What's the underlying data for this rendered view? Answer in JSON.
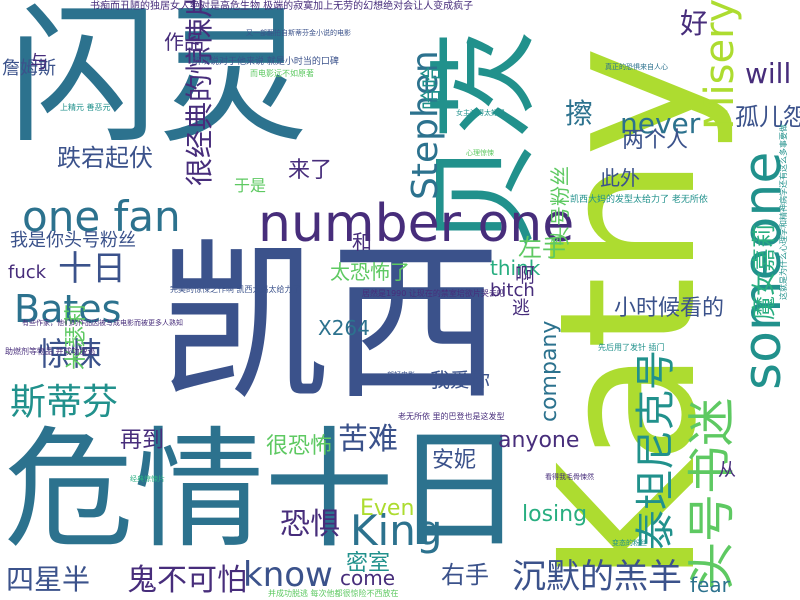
{
  "palette": {
    "dark_purple": "#472d7b",
    "indigo": "#3b528b",
    "teal_blue": "#2c728e",
    "teal": "#21918c",
    "sea_green": "#28ae80",
    "green": "#5ec962",
    "yellow_green": "#addc30",
    "background": "#ffffff"
  },
  "words": [
    {
      "text": "闪灵",
      "color": "#2c728e"
    },
    {
      "text": "凯西",
      "color": "#3b528b"
    },
    {
      "text": "危情十日",
      "color": "#2c728e"
    },
    {
      "text": "Kathy",
      "color": "#addc30"
    },
    {
      "text": "贝茨",
      "color": "#21918c"
    },
    {
      "text": "someone",
      "color": "#21918c"
    },
    {
      "text": "number one",
      "color": "#472d7b"
    },
    {
      "text": "one fan",
      "color": "#2c728e"
    },
    {
      "text": "头号书迷",
      "color": "#5ec962"
    },
    {
      "text": "泰坦尼克号",
      "color": "#21918c"
    },
    {
      "text": "Bates",
      "color": "#2c728e"
    },
    {
      "text": "Stephen",
      "color": "#2c728e"
    },
    {
      "text": "Misery",
      "color": "#addc30"
    },
    {
      "text": "King",
      "color": "#2c728e"
    },
    {
      "text": "很经典的惊悚片",
      "color": "#472d7b"
    },
    {
      "text": "沉默的羔羊",
      "color": "#3b528b"
    },
    {
      "text": "惊悚",
      "color": "#3b528b"
    },
    {
      "text": "斯蒂芬",
      "color": "#21918c"
    },
    {
      "text": "know",
      "color": "#3b528b"
    },
    {
      "text": "鬼不可怕",
      "color": "#472d7b"
    },
    {
      "text": "四星半",
      "color": "#3b528b"
    },
    {
      "text": "跌宕起伏",
      "color": "#3b528b"
    },
    {
      "text": "苦难",
      "color": "#3b528b"
    },
    {
      "text": "恐惧",
      "color": "#472d7b"
    },
    {
      "text": "魔女嘉莉",
      "color": "#28ae80"
    },
    {
      "text": "米瑟莉",
      "color": "#5ec962"
    },
    {
      "text": "十日",
      "color": "#3b528b"
    },
    {
      "text": "never",
      "color": "#2c728e"
    },
    {
      "text": "will",
      "color": "#472d7b"
    },
    {
      "text": "好",
      "color": "#472d7b"
    },
    {
      "text": "孤儿怨",
      "color": "#3b528b"
    },
    {
      "text": "头号粉丝",
      "color": "#5ec962"
    },
    {
      "text": "擦",
      "color": "#2c728e"
    },
    {
      "text": "太恐怖了",
      "color": "#5ec962"
    },
    {
      "text": "我是你头号粉丝",
      "color": "#3b528b"
    },
    {
      "text": "小时候看的",
      "color": "#3b528b"
    },
    {
      "text": "密室",
      "color": "#21918c"
    },
    {
      "text": "右手",
      "color": "#3b528b"
    },
    {
      "text": "左手",
      "color": "#5ec962"
    },
    {
      "text": "很恐怖",
      "color": "#5ec962"
    },
    {
      "text": "我爱你",
      "color": "#3b528b"
    },
    {
      "text": "两个人",
      "color": "#3b528b"
    },
    {
      "text": "安妮",
      "color": "#3b528b"
    },
    {
      "text": "哈哈",
      "color": "#21918c"
    },
    {
      "text": "再到",
      "color": "#472d7b"
    },
    {
      "text": "Even",
      "color": "#addc30"
    },
    {
      "text": "losing",
      "color": "#28ae80"
    },
    {
      "text": "anyone",
      "color": "#472d7b"
    },
    {
      "text": "company",
      "color": "#2c728e"
    },
    {
      "text": "fear",
      "color": "#2c728e"
    },
    {
      "text": "come",
      "color": "#472d7b"
    },
    {
      "text": "bitch",
      "color": "#472d7b"
    },
    {
      "text": "think",
      "color": "#28ae80"
    },
    {
      "text": "fuck",
      "color": "#472d7b"
    },
    {
      "text": "X264",
      "color": "#2c728e"
    },
    {
      "text": "和",
      "color": "#472d7b"
    },
    {
      "text": "来了",
      "color": "#472d7b"
    },
    {
      "text": "于是",
      "color": "#5ec962"
    },
    {
      "text": "此外",
      "color": "#3b528b"
    },
    {
      "text": "作品",
      "color": "#472d7b"
    },
    {
      "text": "啊",
      "color": "#472d7b"
    },
    {
      "text": "从",
      "color": "#472d7b"
    },
    {
      "text": "詹姆斯",
      "color": "#3b528b"
    },
    {
      "text": "与",
      "color": "#472d7b"
    },
    {
      "text": "逃",
      "color": "#472d7b"
    },
    {
      "text": "书痴而丑陋的独居女人绝对是高危生物 极端的寂寞加上无劳的幻想绝对会让人变成疯子",
      "color": "#472d7b"
    },
    {
      "text": "所以说对于他来说 就是小时当的口碑",
      "color": "#3b528b"
    },
    {
      "text": "凯西大妈的发型太给力了 老无所依",
      "color": "#21918c"
    },
    {
      "text": "完美的惊悚之作啊 凯西大妈太给力了",
      "color": "#3b528b"
    },
    {
      "text": "居然是1990 让现在的禁室培欲片哭去吧",
      "color": "#472d7b"
    },
    {
      "text": "先后用了发针 插门",
      "color": "#21918c"
    },
    {
      "text": "老无所依 里的巴登也是这发型",
      "color": "#472d7b"
    },
    {
      "text": "助燃剂等物品 并成功脱逃",
      "color": "#472d7b"
    },
    {
      "text": "上精元 善恶元",
      "color": "#21918c"
    },
    {
      "text": "并成功脱逃 每次他都很惊险不西放在",
      "color": "#5ec962"
    },
    {
      "text": "这就是为什么心理学和精神病学还有这么多事要做",
      "color": "#21918c"
    },
    {
      "text": "有些作家，他们的作品因被写成电影而被更多人熟知",
      "color": "#472d7b"
    },
    {
      "text": "而电影远不如原著",
      "color": "#5ec962"
    },
    {
      "text": "又一部翻拍自斯蒂芬金小说的电影",
      "color": "#3b528b"
    },
    {
      "text": "真正的恐惧来自人心",
      "color": "#2c728e"
    },
    {
      "text": "女主演得太好了",
      "color": "#21918c"
    },
    {
      "text": "看得我毛骨悚然",
      "color": "#472d7b"
    },
    {
      "text": "经典惊悚片",
      "color": "#28ae80"
    },
    {
      "text": "一部好电影",
      "color": "#3b528b"
    },
    {
      "text": "变态的粉丝",
      "color": "#21918c"
    },
    {
      "text": "心理惊悚",
      "color": "#5ec962"
    }
  ]
}
